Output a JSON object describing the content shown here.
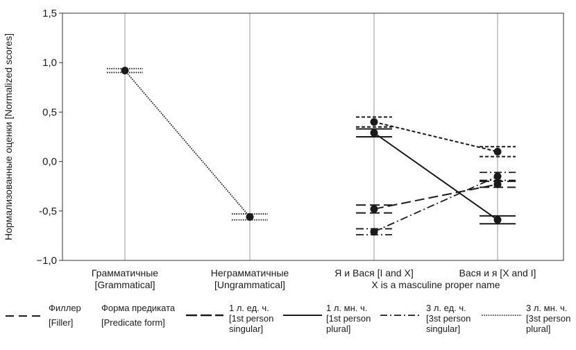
{
  "chart_data": {
    "type": "line",
    "ylabel": "Нормализованные оценки [Normalized scores]",
    "ylim": [
      -1.0,
      1.5
    ],
    "yticks": [
      "1,5",
      "1,0",
      "0,5",
      "0,0",
      "-0,5",
      "−1,0"
    ],
    "ytick_values": [
      1.5,
      1.0,
      0.5,
      0.0,
      -0.5,
      -1.0
    ],
    "grid": "vertical",
    "categories": [
      {
        "line1": "Грамматичные",
        "line2": "[Grammatical]"
      },
      {
        "line1": "Неграмматичные",
        "line2": "[Ungrammatical]"
      },
      {
        "line1": "Я и Вася [I and X]",
        "line2": ""
      },
      {
        "line1": "Вася и я [X and I]",
        "line2": ""
      }
    ],
    "xgroup_label": "X is a masculine proper name",
    "series": [
      {
        "key": "filler",
        "style": "dotted",
        "x": [
          0,
          1
        ],
        "values": [
          0.92,
          -0.56
        ],
        "errors": [
          0.02,
          0.03
        ]
      },
      {
        "key": "3pl",
        "style": "short-dash",
        "x": [
          2,
          3
        ],
        "values": [
          0.4,
          0.1
        ],
        "errors": [
          0.05,
          0.05
        ]
      },
      {
        "key": "1pl",
        "style": "solid",
        "x": [
          2,
          3
        ],
        "values": [
          0.29,
          -0.59
        ],
        "errors": [
          0.04,
          0.04
        ]
      },
      {
        "key": "1sg",
        "style": "long-dash",
        "x": [
          2,
          3
        ],
        "values": [
          -0.48,
          -0.23
        ],
        "errors": [
          0.04,
          0.03
        ]
      },
      {
        "key": "3sg",
        "style": "dash-dot",
        "x": [
          2,
          3
        ],
        "values": [
          -0.71,
          -0.15
        ],
        "errors": [
          0.03,
          0.04
        ]
      }
    ]
  },
  "legend": {
    "filler": {
      "line1": "Филлер",
      "line2": "[Filler]"
    },
    "predicate": {
      "line1": "Форма предиката",
      "line2": "[Predicate form]"
    },
    "sg1": {
      "line1": "1 л. ед. ч.",
      "line2": "[1st person",
      "line3": "singular]"
    },
    "pl1": {
      "line1": "1 л. мн. ч.",
      "line2": "[1st person",
      "line3": "plural]"
    },
    "sg3": {
      "line1": "3 л. ед. ч.",
      "line2": "[3st person",
      "line3": "singular]"
    },
    "pl3": {
      "line1": "3 л. мн. ч.",
      "line2": "[3st person",
      "line3": "plural]"
    }
  }
}
